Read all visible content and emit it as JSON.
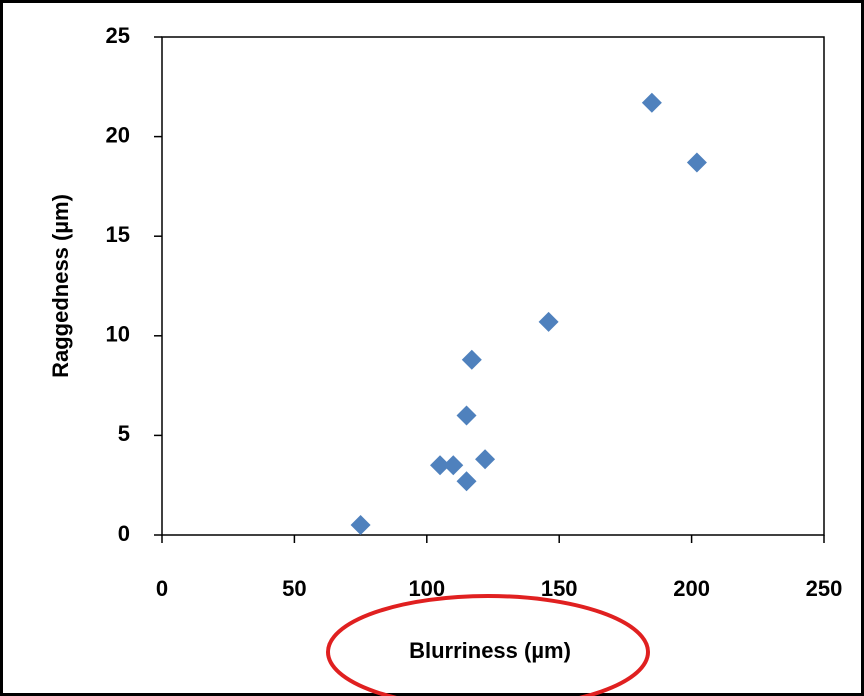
{
  "chart_data": {
    "type": "scatter",
    "x_label": "Blurriness (µm)",
    "y_label": "Raggedness (µm)",
    "x": [
      75,
      105,
      110,
      115,
      115,
      117,
      122,
      146,
      185,
      202
    ],
    "values": [
      0.5,
      3.5,
      3.5,
      2.7,
      6.0,
      8.8,
      3.8,
      10.7,
      21.7,
      18.7
    ],
    "color": "#4f81bd",
    "xlim": [
      0,
      250
    ],
    "xticks": [
      0,
      50,
      100,
      150,
      200,
      250
    ],
    "ylim": [
      0,
      25
    ],
    "yticks": [
      0,
      5,
      10,
      15,
      20,
      25
    ],
    "grid": false
  }
}
